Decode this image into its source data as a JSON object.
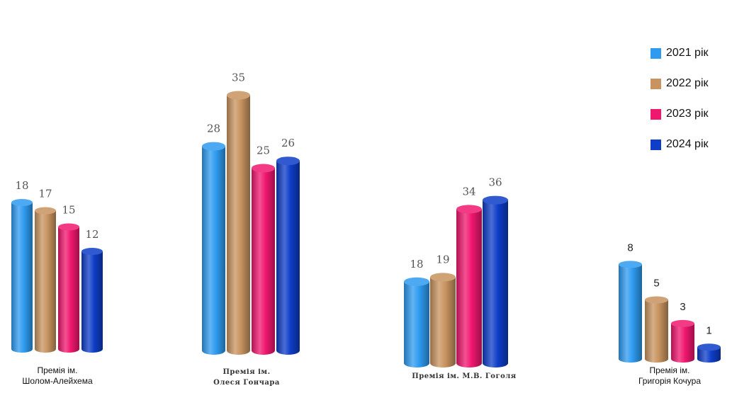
{
  "chart_data": {
    "type": "bar",
    "categories": [
      "Премія ім. Шолом-Алейхема",
      "Премія ім. Олеся Гончара",
      "Премія ім. М.В. Гоголя",
      "Премія ім. Григорія Кочура"
    ],
    "category_labels": [
      [
        "Премія ім.",
        "Шолом-Алейхема"
      ],
      [
        "Премія ім.",
        "Олеся Гончара"
      ],
      [
        "Премія ім. М.В. Гоголя"
      ],
      [
        "Премія ім.",
        "Григорія Кочура"
      ]
    ],
    "series": [
      {
        "name": "2021 рік",
        "values": [
          18,
          28,
          18,
          8
        ],
        "color": "#2E9BF0"
      },
      {
        "name": "2022 рік",
        "values": [
          17,
          35,
          19,
          5
        ],
        "color": "#C8935F"
      },
      {
        "name": "2023 рік",
        "values": [
          15,
          25,
          34,
          3
        ],
        "color": "#F0176F"
      },
      {
        "name": "2024 рік",
        "values": [
          12,
          26,
          36,
          1
        ],
        "color": "#0E3DC8"
      }
    ],
    "legend_position": "top-right",
    "grid": false,
    "style": "3d-cylinder"
  }
}
